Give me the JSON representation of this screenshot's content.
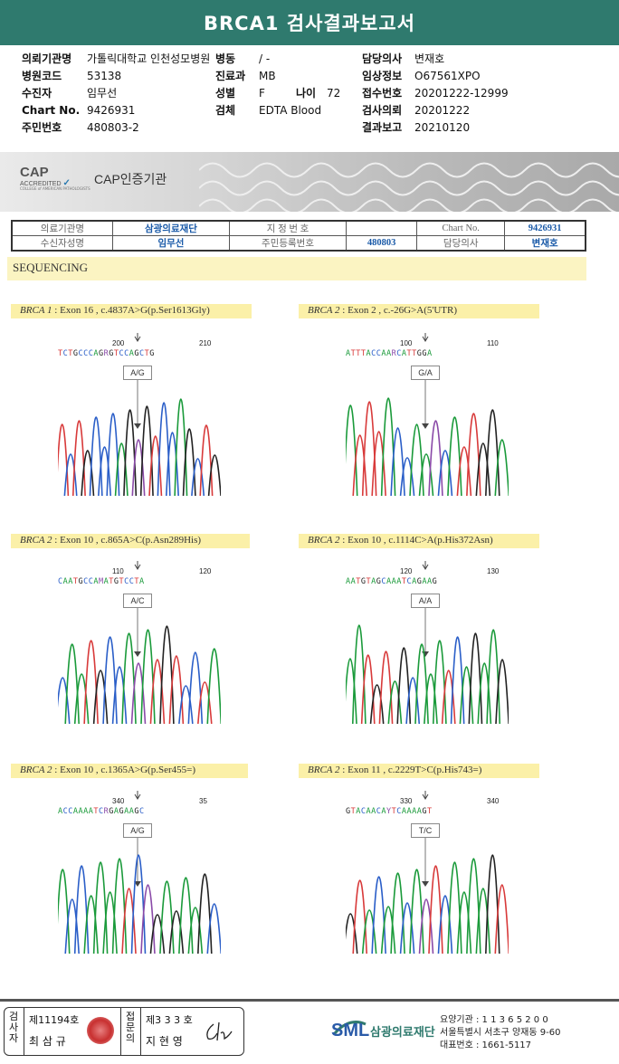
{
  "title": "BRCA1 검사결과보고서",
  "header": {
    "left": [
      {
        "label": "의뢰기관명",
        "value": "가톨릭대학교 인천성모병원"
      },
      {
        "label": "병원코드",
        "value": "53138"
      },
      {
        "label": "수진자",
        "value": "임무선"
      },
      {
        "label": "Chart No.",
        "value": "9426931"
      },
      {
        "label": "주민번호",
        "value": "480803-2"
      }
    ],
    "middle": [
      {
        "label": "병동",
        "value": "/ -"
      },
      {
        "label": "진료과",
        "value": "MB"
      },
      {
        "label": "성별",
        "value": "F"
      },
      {
        "label": "검체",
        "value": "EDTA Blood"
      }
    ],
    "age": {
      "label": "나이",
      "value": "72"
    },
    "right": [
      {
        "label": "담당의사",
        "value": "변재호"
      },
      {
        "label": "임상정보",
        "value": "O67561XPO"
      },
      {
        "label": "접수번호",
        "value": "20201222-12999"
      },
      {
        "label": "검사의뢰",
        "value": "20201222"
      },
      {
        "label": "결과보고",
        "value": "20210120"
      }
    ]
  },
  "banner": {
    "cap_logo": "CAP",
    "accredited": "ACCREDITED",
    "cap_sub": "COLLEGE of AMERICAN PATHOLOGISTS",
    "cap_cert": "CAP인증기관",
    "colors": {
      "accent": "#2f7a6e",
      "brand_blue": "#2a5ba8"
    }
  },
  "patient_table": {
    "r1": [
      "의료기관명",
      "삼광의료재단",
      "지 정 번 호",
      "",
      "Chart No.",
      "9426931"
    ],
    "r2": [
      "수신자성명",
      "임무선",
      "주민등록번호",
      "480803",
      "담당의사",
      "변재호"
    ]
  },
  "section": "SEQUENCING",
  "panels": [
    {
      "gene": "BRCA 1",
      "label": ": Exon 16 , c.4837A>G(p.Ser1613Gly)",
      "n1": "200",
      "n2": "210",
      "bases": "TCTGCCCAGRGTCCAGCTG",
      "gt": "A/G"
    },
    {
      "gene": "BRCA 2",
      "label": ": Exon 2 , c.-26G>A(5'UTR)",
      "n1": "100",
      "n2": "110",
      "bases": "ATTTACCAARCATTGGA",
      "gt": "G/A"
    },
    {
      "gene": "BRCA 2",
      "label": ": Exon 10 , c.865A>C(p.Asn289His)",
      "n1": "110",
      "n2": "120",
      "bases": "CAATGCCAMATGTCCTA",
      "gt": "A/C"
    },
    {
      "gene": "BRCA 2",
      "label": ": Exon 10 , c.1114C>A(p.His372Asn)",
      "n1": "120",
      "n2": "130",
      "bases": "AATGTAGCAAATCAGAAG",
      "gt": "A/A"
    },
    {
      "gene": "BRCA 2",
      "label": ": Exon 10 , c.1365A>G(p.Ser455=)",
      "n1": "340",
      "n2": "35",
      "bases": "ACCAAAATCRGAGAAGC",
      "gt": "A/G"
    },
    {
      "gene": "BRCA 2",
      "label": ": Exon 11 , c.2229T>C(p.His743=)",
      "n1": "330",
      "n2": "340",
      "bases": "GTACAACAYTCAAAAGT",
      "gt": "T/C"
    }
  ],
  "footer": {
    "inspector_label": "검사자",
    "inspector_no": "제11194호",
    "inspector_name": "최 삼 규",
    "confirm_label": "접문의",
    "doctor_no": "제3 3 3 호",
    "doctor_name": "지 현 영",
    "org_logo": "SML",
    "org_name": "삼광의료재단",
    "yoyang": "요양기관 : 1 1 3 6 5 2 0 0",
    "address": "서울특별시 서초구 양재동 9-60",
    "phone": "대표번호 : 1661-5117"
  }
}
